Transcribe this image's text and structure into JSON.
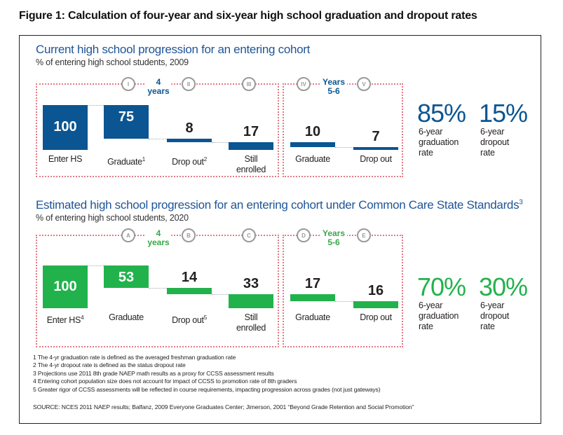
{
  "figure_title": "Figure 1: Calculation of four-year and six-year high school graduation and dropout rates",
  "colors": {
    "current": "#0b5592",
    "estimated": "#22b24c",
    "panel_border": "#e07b86",
    "title_blue": "#1f5596"
  },
  "chart_data": [
    {
      "type": "bar",
      "subtype": "waterfall",
      "title": "Current high school progression for an entering cohort",
      "subtitle": "% of entering high school students, 2009",
      "unit": "% of entering high school students",
      "color": "#0b5592",
      "periods": [
        {
          "label": "4 years",
          "markers": [
            "I",
            "II",
            "III"
          ]
        },
        {
          "label": "Years 5-6",
          "markers": [
            "IV",
            "V"
          ]
        }
      ],
      "categories": [
        "Enter HS",
        "Graduate",
        "Drop out",
        "Still enrolled",
        "Graduate",
        "Drop out"
      ],
      "category_superscripts": [
        "",
        "1",
        "2",
        "",
        "",
        ""
      ],
      "values": [
        100,
        75,
        8,
        17,
        10,
        7
      ],
      "value_labels": [
        "100",
        "75",
        "8",
        "17",
        "10",
        "7"
      ],
      "summary": [
        {
          "value": "85%",
          "label": "6-year graduation rate"
        },
        {
          "value": "15%",
          "label": "6-year dropout rate"
        }
      ]
    },
    {
      "type": "bar",
      "subtype": "waterfall",
      "title": "Estimated high school progression for an entering cohort under Common Care State Standards",
      "title_superscript": "3",
      "subtitle": "% of entering high school students, 2020",
      "unit": "% of entering high school students",
      "color": "#22b24c",
      "periods": [
        {
          "label": "4 years",
          "markers": [
            "A",
            "B",
            "C"
          ]
        },
        {
          "label": "Years 5-6",
          "markers": [
            "D",
            "E"
          ]
        }
      ],
      "categories": [
        "Enter HS",
        "Graduate",
        "Drop out",
        "Still enrolled",
        "Graduate",
        "Drop out"
      ],
      "category_superscripts": [
        "4",
        "",
        "5",
        "",
        "",
        ""
      ],
      "values": [
        100,
        53,
        14,
        33,
        17,
        16
      ],
      "value_labels": [
        "100",
        "53",
        "14",
        "33",
        "17",
        "16"
      ],
      "summary": [
        {
          "value": "70%",
          "label": "6-year graduation rate"
        },
        {
          "value": "30%",
          "label": "6-year dropout rate"
        }
      ]
    }
  ],
  "footnotes": [
    "1 The 4-yr graduation rate is defined as the averaged freshman graduation rate",
    "2 The 4-yr dropout rate is defined as the status dropout rate",
    "3 Projections use 2011 8th grade NAEP math results as a proxy for CCSS assessment results",
    "4 Entering cohort population size does not account for impact of CCSS to promotion rate of 8th graders",
    "5 Greater rigor of CCSS assessments will be reflected in course requirements, impacting progression across grades (not just gateways)"
  ],
  "source": "SOURCE: NCES 2011 NAEP results; Balfanz, 2009 Everyone Graduates Center; Jimerson, 2001 “Beyond Grade Retention and Social Promotion”"
}
